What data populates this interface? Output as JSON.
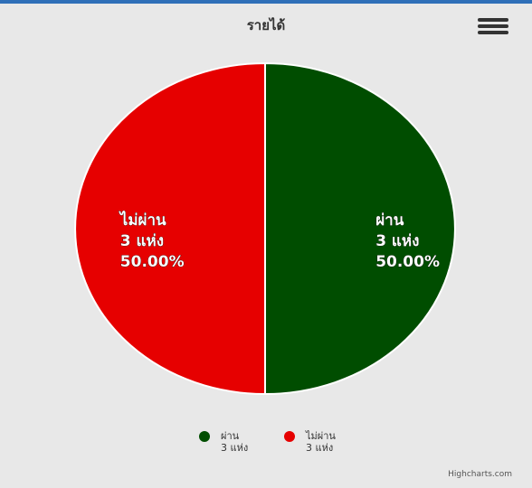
{
  "chart": {
    "title": "รายได้",
    "menu_icon": "hamburger-menu-icon",
    "credits": "Highcharts.com"
  },
  "chart_data": {
    "type": "pie",
    "title": "รายได้",
    "series": [
      {
        "slices": [
          {
            "name": "ผ่าน",
            "count_label": "3 แห่ง",
            "value": 3,
            "percent_label": "50.00%",
            "color": "#004d00"
          },
          {
            "name": "ไม่ผ่าน",
            "count_label": "3 แห่ง",
            "value": 3,
            "percent_label": "50.00%",
            "color": "#e60000"
          }
        ]
      }
    ],
    "legend": {
      "items": [
        {
          "name": "ผ่าน",
          "sub": "3 แห่ง",
          "color": "#004d00"
        },
        {
          "name": "ไม่ผ่าน",
          "sub": "3 แห่ง",
          "color": "#e60000"
        }
      ]
    }
  }
}
